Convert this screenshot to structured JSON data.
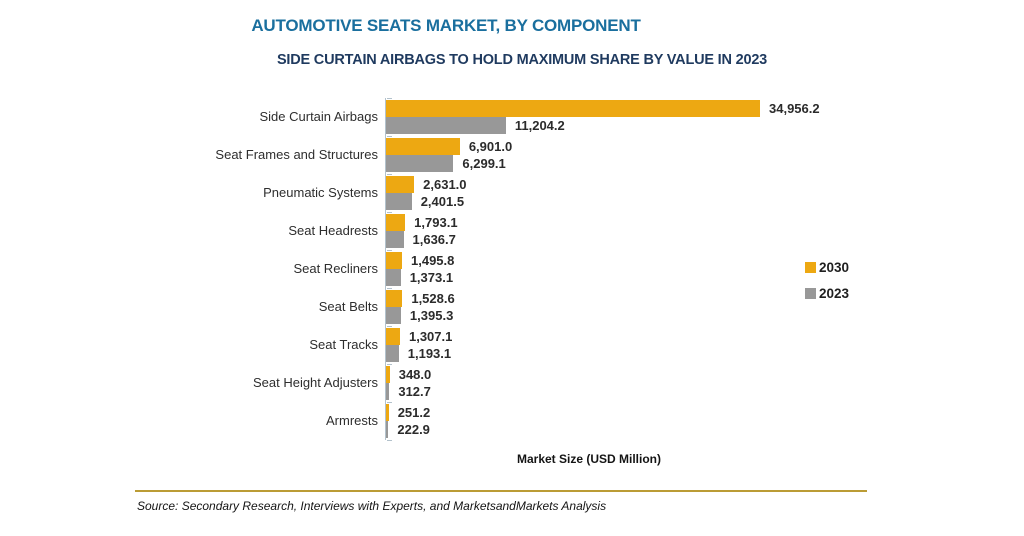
{
  "chart_data": {
    "type": "bar",
    "orientation": "horizontal",
    "title": "AUTOMOTIVE SEATS MARKET, BY COMPONENT",
    "subtitle": "SIDE CURTAIN AIRBAGS TO HOLD MAXIMUM SHARE BY VALUE IN 2023",
    "xlabel": "Market Size (USD Million)",
    "xlim": [
      0,
      34956.2
    ],
    "grid": false,
    "legend_position": "middle-right",
    "categories": [
      "Side Curtain Airbags",
      "Seat Frames and Structures",
      "Pneumatic Systems",
      "Seat Headrests",
      "Seat Recliners",
      "Seat Belts",
      "Seat Tracks",
      "Seat Height Adjusters",
      "Armrests"
    ],
    "series": [
      {
        "name": "2030",
        "color": "#EDA812",
        "values": [
          34956.2,
          6901.0,
          2631.0,
          1793.1,
          1495.8,
          1528.6,
          1307.1,
          348.0,
          251.2
        ],
        "labels": [
          "34,956.2",
          "6,901.0",
          "2,631.0",
          "1,793.1",
          "1,495.8",
          "1,528.6",
          "1,307.1",
          "348.0",
          "251.2"
        ]
      },
      {
        "name": "2023",
        "color": "#989898",
        "values": [
          11204.2,
          6299.1,
          2401.5,
          1636.7,
          1373.1,
          1395.3,
          1193.1,
          312.7,
          222.9
        ],
        "labels": [
          "11,204.2",
          "6,299.1",
          "2,401.5",
          "1,636.7",
          "1,373.1",
          "1,395.3",
          "1,193.1",
          "312.7",
          "222.9"
        ]
      }
    ]
  },
  "footer": {
    "source": "Source: Secondary Research, Interviews with Experts, and MarketsandMarkets Analysis"
  }
}
